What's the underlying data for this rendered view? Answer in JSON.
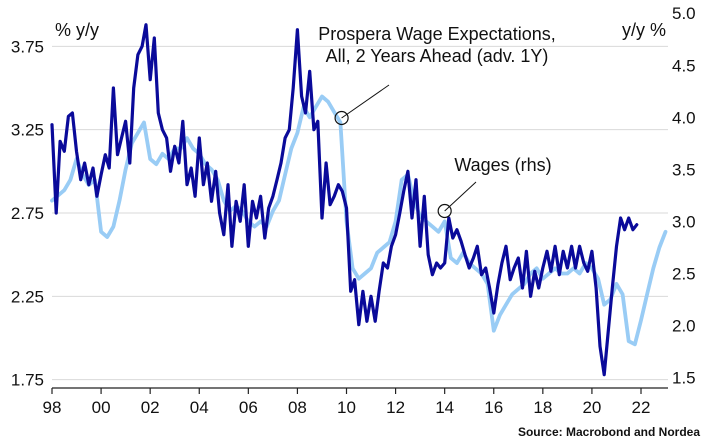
{
  "chart_data": {
    "type": "line",
    "title": "",
    "source": "Source: Macrobond and Nordea",
    "left_axis": {
      "unit_label": "% y/y",
      "ylim": [
        1.7,
        3.98
      ],
      "ticks": [
        1.75,
        2.25,
        2.75,
        3.25,
        3.75
      ],
      "tick_labels": [
        "1.75",
        "2.25",
        "2.75",
        "3.25",
        "3.75"
      ]
    },
    "right_axis": {
      "unit_label": "y/y %",
      "ylim": [
        1.4,
        5.05
      ],
      "ticks": [
        1.5,
        2.0,
        2.5,
        3.0,
        3.5,
        4.0,
        4.5,
        5.0
      ],
      "tick_labels": [
        "1.5",
        "2.0",
        "2.5",
        "3.0",
        "3.5",
        "4.0",
        "4.5",
        "5.0"
      ]
    },
    "x_axis": {
      "xlim": [
        1998,
        2023.1
      ],
      "ticks": [
        1998,
        2000,
        2002,
        2004,
        2006,
        2008,
        2010,
        2012,
        2014,
        2016,
        2018,
        2020,
        2022
      ],
      "tick_labels": [
        "98",
        "00",
        "02",
        "04",
        "06",
        "08",
        "10",
        "12",
        "14",
        "16",
        "18",
        "20",
        "22"
      ]
    },
    "grid": "horizontal",
    "series": [
      {
        "name": "Prospera Wage Expectations, All, 2 Years Ahead (adv. 1Y)",
        "axis": "left",
        "color": "#0a0a9a",
        "points": [
          [
            1998.0,
            3.28
          ],
          [
            1998.17,
            2.75
          ],
          [
            1998.33,
            3.18
          ],
          [
            1998.5,
            3.12
          ],
          [
            1998.67,
            3.33
          ],
          [
            1998.83,
            3.35
          ],
          [
            1999.0,
            3.12
          ],
          [
            1999.17,
            2.95
          ],
          [
            1999.33,
            3.05
          ],
          [
            1999.5,
            2.92
          ],
          [
            1999.67,
            3.02
          ],
          [
            1999.83,
            2.85
          ],
          [
            2000.0,
            2.98
          ],
          [
            2000.17,
            3.1
          ],
          [
            2000.33,
            3.02
          ],
          [
            2000.5,
            3.5
          ],
          [
            2000.67,
            3.1
          ],
          [
            2000.83,
            3.2
          ],
          [
            2001.0,
            3.3
          ],
          [
            2001.17,
            3.05
          ],
          [
            2001.33,
            3.5
          ],
          [
            2001.5,
            3.7
          ],
          [
            2001.67,
            3.75
          ],
          [
            2001.83,
            3.88
          ],
          [
            2002.0,
            3.55
          ],
          [
            2002.17,
            3.8
          ],
          [
            2002.33,
            3.35
          ],
          [
            2002.5,
            3.25
          ],
          [
            2002.67,
            3.2
          ],
          [
            2002.83,
            3.0
          ],
          [
            2003.0,
            3.15
          ],
          [
            2003.17,
            3.05
          ],
          [
            2003.33,
            3.3
          ],
          [
            2003.5,
            2.92
          ],
          [
            2003.67,
            3.02
          ],
          [
            2003.83,
            2.85
          ],
          [
            2004.0,
            3.2
          ],
          [
            2004.17,
            2.92
          ],
          [
            2004.33,
            3.05
          ],
          [
            2004.5,
            2.82
          ],
          [
            2004.67,
            3.0
          ],
          [
            2004.83,
            2.75
          ],
          [
            2005.0,
            2.62
          ],
          [
            2005.17,
            2.92
          ],
          [
            2005.33,
            2.55
          ],
          [
            2005.5,
            2.82
          ],
          [
            2005.67,
            2.7
          ],
          [
            2005.83,
            2.92
          ],
          [
            2006.0,
            2.55
          ],
          [
            2006.17,
            2.82
          ],
          [
            2006.33,
            2.72
          ],
          [
            2006.5,
            2.85
          ],
          [
            2006.67,
            2.6
          ],
          [
            2006.83,
            2.78
          ],
          [
            2007.0,
            2.85
          ],
          [
            2007.17,
            2.95
          ],
          [
            2007.33,
            3.05
          ],
          [
            2007.5,
            3.2
          ],
          [
            2007.67,
            3.25
          ],
          [
            2007.83,
            3.5
          ],
          [
            2008.0,
            3.85
          ],
          [
            2008.17,
            3.45
          ],
          [
            2008.33,
            3.35
          ],
          [
            2008.5,
            3.6
          ],
          [
            2008.67,
            3.25
          ],
          [
            2008.83,
            3.3
          ],
          [
            2009.0,
            2.72
          ],
          [
            2009.17,
            3.05
          ],
          [
            2009.33,
            2.8
          ],
          [
            2009.5,
            2.85
          ],
          [
            2009.67,
            2.92
          ],
          [
            2009.83,
            2.88
          ],
          [
            2010.0,
            2.78
          ],
          [
            2010.17,
            2.28
          ],
          [
            2010.33,
            2.35
          ],
          [
            2010.5,
            2.08
          ],
          [
            2010.67,
            2.28
          ],
          [
            2010.83,
            2.1
          ],
          [
            2011.0,
            2.25
          ],
          [
            2011.17,
            2.1
          ],
          [
            2011.33,
            2.28
          ],
          [
            2011.5,
            2.45
          ],
          [
            2011.67,
            2.42
          ],
          [
            2011.83,
            2.55
          ],
          [
            2012.0,
            2.62
          ],
          [
            2012.17,
            2.75
          ],
          [
            2012.33,
            2.88
          ],
          [
            2012.5,
            3.0
          ],
          [
            2012.67,
            2.72
          ],
          [
            2012.83,
            2.95
          ],
          [
            2013.0,
            2.55
          ],
          [
            2013.17,
            2.85
          ],
          [
            2013.33,
            2.5
          ],
          [
            2013.5,
            2.38
          ],
          [
            2013.67,
            2.45
          ],
          [
            2013.83,
            2.42
          ],
          [
            2014.0,
            2.45
          ],
          [
            2014.17,
            2.72
          ],
          [
            2014.33,
            2.6
          ],
          [
            2014.5,
            2.65
          ],
          [
            2014.67,
            2.58
          ],
          [
            2014.83,
            2.5
          ],
          [
            2015.0,
            2.42
          ],
          [
            2015.17,
            2.48
          ],
          [
            2015.33,
            2.55
          ],
          [
            2015.5,
            2.38
          ],
          [
            2015.67,
            2.42
          ],
          [
            2015.83,
            2.3
          ],
          [
            2016.0,
            2.15
          ],
          [
            2016.17,
            2.32
          ],
          [
            2016.33,
            2.45
          ],
          [
            2016.5,
            2.55
          ],
          [
            2016.67,
            2.35
          ],
          [
            2016.83,
            2.42
          ],
          [
            2017.0,
            2.48
          ],
          [
            2017.17,
            2.3
          ],
          [
            2017.33,
            2.52
          ],
          [
            2017.5,
            2.25
          ],
          [
            2017.67,
            2.4
          ],
          [
            2017.83,
            2.3
          ],
          [
            2018.0,
            2.42
          ],
          [
            2018.17,
            2.52
          ],
          [
            2018.33,
            2.4
          ],
          [
            2018.5,
            2.55
          ],
          [
            2018.67,
            2.38
          ],
          [
            2018.83,
            2.52
          ],
          [
            2019.0,
            2.42
          ],
          [
            2019.17,
            2.55
          ],
          [
            2019.33,
            2.42
          ],
          [
            2019.5,
            2.55
          ],
          [
            2019.67,
            2.45
          ],
          [
            2019.83,
            2.4
          ],
          [
            2020.0,
            2.52
          ],
          [
            2020.17,
            2.3
          ],
          [
            2020.33,
            1.95
          ],
          [
            2020.5,
            1.78
          ],
          [
            2020.67,
            2.05
          ],
          [
            2020.83,
            2.3
          ],
          [
            2021.0,
            2.55
          ],
          [
            2021.17,
            2.72
          ],
          [
            2021.33,
            2.65
          ],
          [
            2021.5,
            2.72
          ],
          [
            2021.67,
            2.65
          ],
          [
            2021.83,
            2.68
          ]
        ]
      },
      {
        "name": "Wages (rhs)",
        "axis": "right",
        "color": "#99ccf5",
        "points": [
          [
            1998.0,
            3.2
          ],
          [
            1998.25,
            3.25
          ],
          [
            1998.5,
            3.3
          ],
          [
            1998.75,
            3.4
          ],
          [
            1999.0,
            3.6
          ],
          [
            1999.25,
            3.45
          ],
          [
            1999.5,
            3.35
          ],
          [
            1999.75,
            3.4
          ],
          [
            2000.0,
            2.9
          ],
          [
            2000.25,
            2.85
          ],
          [
            2000.5,
            2.95
          ],
          [
            2000.75,
            3.2
          ],
          [
            2001.0,
            3.5
          ],
          [
            2001.25,
            3.75
          ],
          [
            2001.5,
            3.85
          ],
          [
            2001.75,
            3.95
          ],
          [
            2002.0,
            3.6
          ],
          [
            2002.25,
            3.55
          ],
          [
            2002.5,
            3.65
          ],
          [
            2002.75,
            3.6
          ],
          [
            2003.0,
            3.7
          ],
          [
            2003.25,
            3.7
          ],
          [
            2003.5,
            3.8
          ],
          [
            2003.75,
            3.7
          ],
          [
            2004.0,
            3.65
          ],
          [
            2004.25,
            3.55
          ],
          [
            2004.5,
            3.5
          ],
          [
            2004.75,
            3.4
          ],
          [
            2005.0,
            3.2
          ],
          [
            2005.25,
            3.1
          ],
          [
            2005.5,
            3.15
          ],
          [
            2005.75,
            3.1
          ],
          [
            2006.0,
            3.0
          ],
          [
            2006.25,
            2.95
          ],
          [
            2006.5,
            3.0
          ],
          [
            2006.75,
            2.95
          ],
          [
            2007.0,
            3.1
          ],
          [
            2007.25,
            3.2
          ],
          [
            2007.5,
            3.45
          ],
          [
            2007.75,
            3.7
          ],
          [
            2008.0,
            3.85
          ],
          [
            2008.25,
            4.1
          ],
          [
            2008.5,
            4.0
          ],
          [
            2008.75,
            4.1
          ],
          [
            2009.0,
            4.2
          ],
          [
            2009.25,
            4.15
          ],
          [
            2009.5,
            4.05
          ],
          [
            2009.75,
            3.95
          ],
          [
            2010.0,
            3.0
          ],
          [
            2010.25,
            2.55
          ],
          [
            2010.5,
            2.45
          ],
          [
            2010.75,
            2.5
          ],
          [
            2011.0,
            2.55
          ],
          [
            2011.25,
            2.7
          ],
          [
            2011.5,
            2.75
          ],
          [
            2011.75,
            2.8
          ],
          [
            2012.0,
            3.0
          ],
          [
            2012.25,
            3.4
          ],
          [
            2012.5,
            3.45
          ],
          [
            2012.75,
            3.2
          ],
          [
            2013.0,
            3.05
          ],
          [
            2013.25,
            3.0
          ],
          [
            2013.5,
            2.95
          ],
          [
            2013.75,
            2.9
          ],
          [
            2014.0,
            3.0
          ],
          [
            2014.25,
            2.65
          ],
          [
            2014.5,
            2.6
          ],
          [
            2014.75,
            2.7
          ],
          [
            2015.0,
            2.6
          ],
          [
            2015.25,
            2.55
          ],
          [
            2015.5,
            2.5
          ],
          [
            2015.75,
            2.4
          ],
          [
            2016.0,
            1.95
          ],
          [
            2016.25,
            2.1
          ],
          [
            2016.5,
            2.2
          ],
          [
            2016.75,
            2.3
          ],
          [
            2017.0,
            2.35
          ],
          [
            2017.25,
            2.4
          ],
          [
            2017.5,
            2.5
          ],
          [
            2017.75,
            2.55
          ],
          [
            2018.0,
            2.45
          ],
          [
            2018.25,
            2.5
          ],
          [
            2018.5,
            2.55
          ],
          [
            2018.75,
            2.5
          ],
          [
            2019.0,
            2.5
          ],
          [
            2019.25,
            2.55
          ],
          [
            2019.5,
            2.5
          ],
          [
            2019.75,
            2.6
          ],
          [
            2020.0,
            2.55
          ],
          [
            2020.25,
            2.45
          ],
          [
            2020.5,
            2.2
          ],
          [
            2020.75,
            2.25
          ],
          [
            2021.0,
            2.4
          ],
          [
            2021.25,
            2.3
          ],
          [
            2021.5,
            1.85
          ],
          [
            2021.75,
            1.82
          ],
          [
            2022.0,
            2.05
          ],
          [
            2022.25,
            2.3
          ],
          [
            2022.5,
            2.55
          ],
          [
            2022.75,
            2.75
          ],
          [
            2023.0,
            2.9
          ]
        ]
      }
    ],
    "annotations": [
      {
        "lines": [
          "Prospera Wage Expectations,",
          "All, 2 Years Ahead (adv. 1Y)"
        ],
        "series": 0,
        "target": [
          2009.8,
          3.32
        ]
      },
      {
        "lines": [
          "Wages (rhs)"
        ],
        "series": 1,
        "target": [
          2014.0,
          3.1
        ]
      }
    ]
  }
}
